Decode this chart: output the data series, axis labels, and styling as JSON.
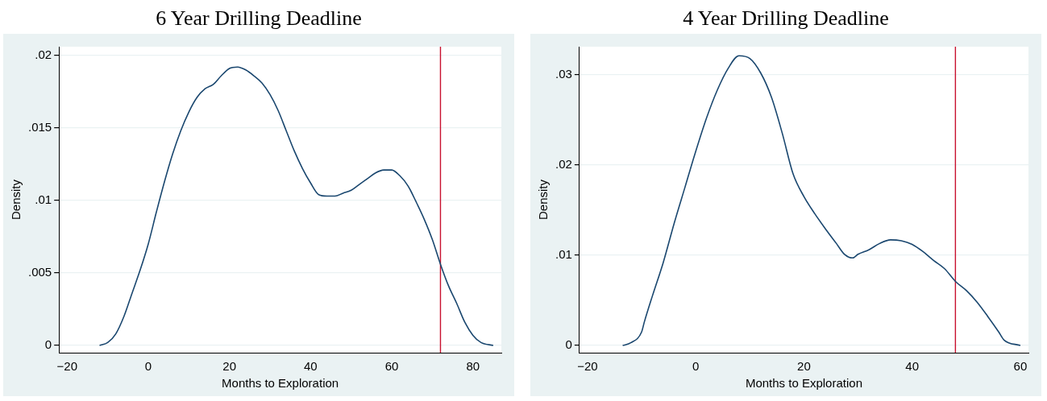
{
  "chart_data": [
    {
      "type": "line",
      "title": "6 Year Drilling Deadline",
      "xlabel": "Months to Exploration",
      "ylabel": "Density",
      "marker": "none",
      "grid": "y",
      "legend": false,
      "xlim": [
        -22,
        87
      ],
      "xticks": [
        -20,
        0,
        20,
        40,
        60,
        80
      ],
      "ylim": [
        -0.0005,
        0.0206
      ],
      "yticks": [
        0,
        {
          "value": 0.005,
          "label": ".005"
        },
        {
          "value": 0.01,
          "label": ".01"
        },
        {
          "value": 0.015,
          "label": ".015"
        },
        {
          "value": 0.02,
          "label": ".02"
        }
      ],
      "series": [
        {
          "color": "#1a476f",
          "x": [
            -12,
            -10,
            -8,
            -6,
            -4,
            -2,
            0,
            2,
            4,
            6,
            8,
            10,
            12,
            14,
            16,
            18,
            20,
            22,
            24,
            26,
            28,
            30,
            32,
            34,
            36,
            38,
            40,
            42,
            44,
            46,
            48,
            50,
            52,
            54,
            56,
            58,
            60,
            62,
            64,
            66,
            68,
            70,
            72,
            74,
            76,
            78,
            80,
            82,
            85
          ],
          "values": [
            0,
            0.0002,
            0.0008,
            0.002,
            0.0036,
            0.0052,
            0.007,
            0.0092,
            0.0113,
            0.0132,
            0.0148,
            0.0161,
            0.0171,
            0.0177,
            0.018,
            0.0186,
            0.0191,
            0.0192,
            0.019,
            0.0186,
            0.0181,
            0.0173,
            0.0162,
            0.0148,
            0.0134,
            0.0122,
            0.0112,
            0.0104,
            0.0103,
            0.0103,
            0.0105,
            0.0107,
            0.0111,
            0.0115,
            0.0119,
            0.0121,
            0.0121,
            0.0117,
            0.011,
            0.0099,
            0.0087,
            0.0073,
            0.0056,
            0.0041,
            0.0029,
            0.0016,
            0.0007,
            0.0002,
            0
          ]
        }
      ],
      "ref_lines": [
        {
          "axis": "x",
          "value": 72,
          "color": "#c8102e"
        }
      ]
    },
    {
      "type": "line",
      "title": "4 Year Drilling Deadline",
      "xlabel": "Months to Exploration",
      "ylabel": "Density",
      "marker": "none",
      "grid": "y",
      "legend": false,
      "xlim": [
        -21.5,
        61.5
      ],
      "xticks": [
        -20,
        0,
        20,
        40,
        60
      ],
      "ylim": [
        -0.0008,
        0.0331
      ],
      "yticks": [
        0,
        {
          "value": 0.01,
          "label": ".01"
        },
        {
          "value": 0.02,
          "label": ".02"
        },
        {
          "value": 0.03,
          "label": ".03"
        }
      ],
      "series": [
        {
          "color": "#1a476f",
          "x": [
            -13.5,
            -12,
            -10,
            -9.5,
            -8,
            -6,
            -4,
            -2,
            0,
            2,
            4,
            6,
            8,
            10,
            12,
            14,
            16,
            18,
            20,
            22,
            24,
            26,
            27.5,
            29,
            30,
            32,
            34,
            36,
            38,
            40,
            42,
            44,
            46,
            48,
            50,
            52,
            54,
            56,
            57,
            60
          ],
          "values": [
            0,
            0.0003,
            0.0015,
            0.0026,
            0.0055,
            0.0092,
            0.0135,
            0.0175,
            0.0215,
            0.0252,
            0.0283,
            0.0307,
            0.0321,
            0.0318,
            0.0302,
            0.0275,
            0.0235,
            0.019,
            0.0165,
            0.0146,
            0.0129,
            0.0113,
            0.0101,
            0.0097,
            0.0101,
            0.0106,
            0.0113,
            0.0117,
            0.0116,
            0.0112,
            0.0104,
            0.0094,
            0.0085,
            0.0071,
            0.0061,
            0.0048,
            0.0032,
            0.0015,
            0.0006,
            0
          ]
        }
      ],
      "ref_lines": [
        {
          "axis": "x",
          "value": 48,
          "color": "#c8102e"
        }
      ]
    }
  ]
}
